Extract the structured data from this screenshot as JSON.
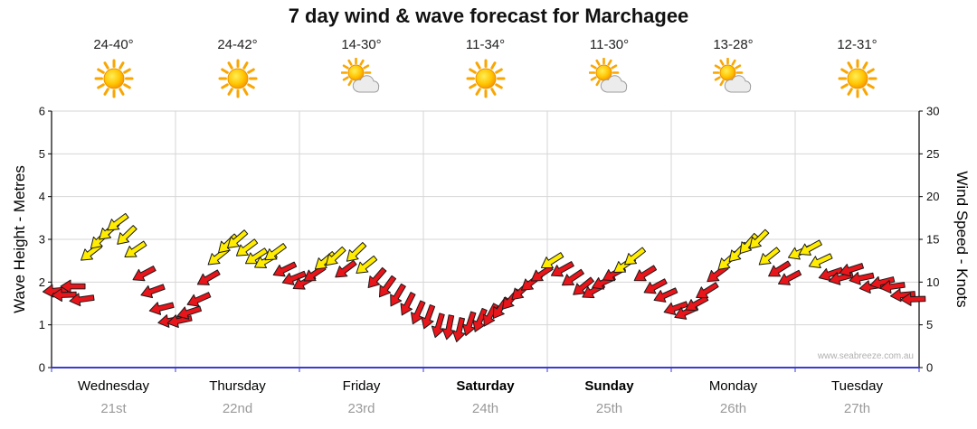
{
  "chart_data": {
    "type": "scatter",
    "title": "7 day wind & wave forecast for Marchagee",
    "ylabel_left": "Wave Height - Metres",
    "ylabel_right": "Wind Speed - Knots",
    "ylim_left": [
      0,
      6
    ],
    "ylim_right": [
      0,
      30
    ],
    "yticks_left": [
      0,
      1,
      2,
      3,
      4,
      5,
      6
    ],
    "yticks_right": [
      0,
      5,
      10,
      15,
      20,
      25,
      30
    ],
    "grid": true,
    "legend": "none",
    "watermark": "www.seabreeze.com.au",
    "wind_format": "[speed_knots, direction_deg_clockwise_from_east]",
    "wind_colors": {
      "red": "#e8151b",
      "yellow": "#ffec00",
      "yellow_min_knots": 12
    },
    "axis_colors": {
      "left_axis": "#000000",
      "right_axis": "#000000",
      "bottom_axis": "#3c3cd1",
      "grid": "#d6d6d6"
    },
    "days": [
      {
        "name": "Wednesday",
        "date": "21st",
        "temp": "24-40°",
        "icon": "sunny",
        "weekend": false,
        "wind": [
          [
            9,
            175
          ],
          [
            8.5,
            178
          ],
          [
            9.5,
            180
          ],
          [
            8,
            172
          ],
          [
            13.5,
            142
          ],
          [
            15,
            136
          ],
          [
            16,
            139
          ],
          [
            17,
            143
          ],
          [
            15.5,
            136
          ],
          [
            13.8,
            146
          ],
          [
            11,
            152
          ],
          [
            9,
            160
          ],
          [
            7,
            166
          ],
          [
            5.5,
            170
          ]
        ]
      },
      {
        "name": "Thursday",
        "date": "22nd",
        "temp": "24-42°",
        "icon": "sunny",
        "weekend": false,
        "wind": [
          [
            5.5,
            168
          ],
          [
            6.5,
            162
          ],
          [
            8,
            156
          ],
          [
            10.5,
            150
          ],
          [
            13,
            141
          ],
          [
            14.5,
            136
          ],
          [
            15,
            139
          ],
          [
            14,
            143
          ],
          [
            13,
            147
          ],
          [
            12.5,
            150
          ],
          [
            13.5,
            144
          ],
          [
            11.5,
            154
          ],
          [
            10.5,
            158
          ]
        ]
      },
      {
        "name": "Friday",
        "date": "23rd",
        "temp": "14-30°",
        "icon": "partly-cloudy",
        "weekend": false,
        "wind": [
          [
            10,
            150
          ],
          [
            11,
            146
          ],
          [
            12.5,
            140
          ],
          [
            13,
            137
          ],
          [
            11.5,
            143
          ],
          [
            13.5,
            136
          ],
          [
            12,
            141
          ],
          [
            10.5,
            131
          ],
          [
            9.5,
            126
          ],
          [
            8.5,
            121
          ],
          [
            7.5,
            117
          ],
          [
            6.5,
            114
          ]
        ]
      },
      {
        "name": "Saturday",
        "date": "24th",
        "temp": "11-34°",
        "icon": "sunny",
        "weekend": true,
        "wind": [
          [
            6,
            110
          ],
          [
            5,
            106
          ],
          [
            4.8,
            101
          ],
          [
            4.5,
            103
          ],
          [
            5.2,
            108
          ],
          [
            5.6,
            113
          ],
          [
            6.2,
            118
          ],
          [
            7,
            125
          ],
          [
            8,
            131
          ],
          [
            9,
            137
          ],
          [
            10,
            142
          ],
          [
            11,
            146
          ]
        ]
      },
      {
        "name": "Sunday",
        "date": "25th",
        "temp": "11-30°",
        "icon": "partly-cloudy",
        "weekend": true,
        "wind": [
          [
            12.5,
            148
          ],
          [
            11.5,
            151
          ],
          [
            10.5,
            146
          ],
          [
            9.5,
            141
          ],
          [
            9,
            150
          ],
          [
            10,
            155
          ],
          [
            11,
            151
          ],
          [
            12,
            146
          ],
          [
            13,
            142
          ],
          [
            11,
            148
          ],
          [
            9.5,
            152
          ],
          [
            8.5,
            156
          ]
        ]
      },
      {
        "name": "Monday",
        "date": "26th",
        "temp": "13-28°",
        "icon": "partly-cloudy",
        "weekend": false,
        "wind": [
          [
            7,
            160
          ],
          [
            6.5,
            156
          ],
          [
            7.5,
            151
          ],
          [
            9,
            148
          ],
          [
            11,
            143
          ],
          [
            12.5,
            138
          ],
          [
            13.5,
            134
          ],
          [
            14.5,
            131
          ],
          [
            15,
            135
          ],
          [
            13,
            141
          ],
          [
            11.5,
            148
          ],
          [
            10.5,
            152
          ]
        ]
      },
      {
        "name": "Tuesday",
        "date": "27th",
        "temp": "12-31°",
        "icon": "sunny",
        "weekend": false,
        "wind": [
          [
            13.5,
            156
          ],
          [
            14,
            151
          ],
          [
            12.5,
            155
          ],
          [
            11,
            161
          ],
          [
            10.5,
            165
          ],
          [
            11.5,
            162
          ],
          [
            10.5,
            168
          ],
          [
            9.5,
            171
          ],
          [
            10,
            166
          ],
          [
            9.5,
            172
          ],
          [
            8.5,
            175
          ],
          [
            8,
            178
          ]
        ]
      }
    ]
  }
}
